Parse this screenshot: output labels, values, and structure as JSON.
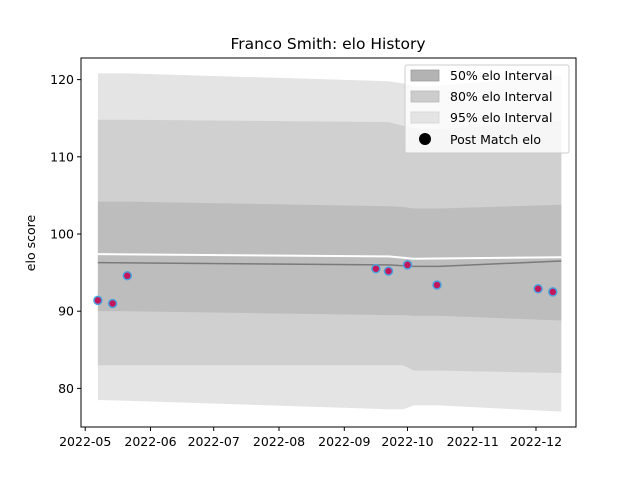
{
  "chart_data": {
    "type": "line",
    "title": "Franco Smith: elo History",
    "xlabel": "",
    "ylabel": "elo score",
    "x_ticks": [
      "2022-05",
      "2022-06",
      "2022-07",
      "2022-08",
      "2022-09",
      "2022-10",
      "2022-11",
      "2022-12"
    ],
    "y_ticks": [
      80,
      90,
      100,
      110,
      120
    ],
    "ylim": [
      75,
      122.8
    ],
    "xlim": [
      "2022-04-29",
      "2022-12-20"
    ],
    "grid": false,
    "legend_position": "top-right",
    "bands": {
      "x": [
        "2022-05-07",
        "2022-05-21",
        "2022-09-22",
        "2022-09-29",
        "2022-10-04",
        "2022-10-16",
        "2022-12-13"
      ],
      "p95_upper": [
        120.8,
        120.8,
        119.8,
        119.5,
        119.2,
        119.2,
        120.6
      ],
      "p80_upper": [
        114.8,
        114.8,
        114.5,
        114.0,
        113.7,
        113.6,
        114.7
      ],
      "p50_upper": [
        104.2,
        104.2,
        103.6,
        103.5,
        103.3,
        103.3,
        103.8
      ],
      "p50_lower": [
        90.0,
        90.0,
        89.5,
        89.5,
        89.4,
        89.4,
        88.8
      ],
      "p80_lower": [
        83.0,
        83.0,
        83.0,
        83.0,
        82.3,
        82.3,
        82.0
      ],
      "p95_lower": [
        78.5,
        78.4,
        77.3,
        77.3,
        77.8,
        77.8,
        77.0
      ]
    },
    "mean_line": {
      "x": [
        "2022-05-07",
        "2022-09-22",
        "2022-10-04",
        "2022-10-16",
        "2022-12-13"
      ],
      "values": [
        96.3,
        96.0,
        95.8,
        95.8,
        96.5
      ],
      "color": "#7a7a7a"
    },
    "upper_line": {
      "x": [
        "2022-05-07",
        "2022-09-22",
        "2022-10-04",
        "2022-12-13"
      ],
      "values": [
        97.4,
        97.1,
        96.8,
        97.0
      ],
      "color": "#ffffff"
    },
    "series": [
      {
        "name": "Post Match elo",
        "x": [
          "2022-05-07",
          "2022-05-14",
          "2022-05-21",
          "2022-09-16",
          "2022-09-22",
          "2022-10-01",
          "2022-10-15",
          "2022-12-02",
          "2022-12-09"
        ],
        "values": [
          91.4,
          91.0,
          94.6,
          95.5,
          95.2,
          96.0,
          93.4,
          92.9,
          92.5
        ],
        "marker_fill": "#c2185b",
        "marker_edge": "#4aa3df"
      }
    ],
    "legend": [
      {
        "label": "50% elo Interval",
        "color": "#b3b3b3"
      },
      {
        "label": "80% elo Interval",
        "color": "#cccccc"
      },
      {
        "label": "95% elo Interval",
        "color": "#e4e4e4"
      },
      {
        "label": "Post Match elo",
        "color": "#000000"
      }
    ],
    "colors": {
      "band_50": "#bdbdbd",
      "band_80": "#d0d0d0",
      "band_95": "#e4e4e4"
    }
  }
}
